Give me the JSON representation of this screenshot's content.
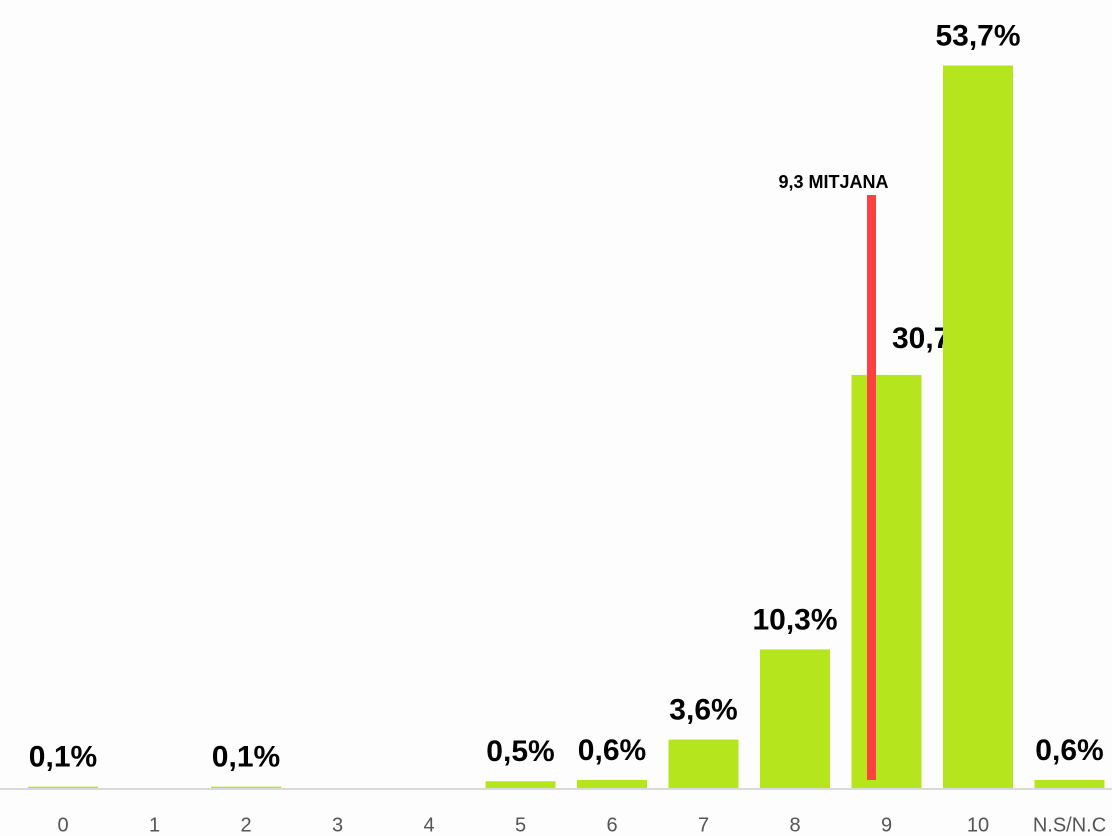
{
  "chart_data": {
    "type": "bar",
    "categories": [
      "0",
      "1",
      "2",
      "3",
      "4",
      "5",
      "6",
      "7",
      "8",
      "9",
      "10",
      "N.S/N.C"
    ],
    "values": [
      0.1,
      0,
      0.1,
      0,
      0,
      0.5,
      0.6,
      3.6,
      10.3,
      30.7,
      53.7,
      0.6
    ],
    "value_labels": [
      "0,1%",
      null,
      "0,1%",
      null,
      null,
      "0,5%",
      "0,6%",
      "3,6%",
      "10,3%",
      "30,7%",
      "53,7%",
      "0,6%"
    ],
    "color": "#b5e61d",
    "ylim": [
      0,
      55
    ],
    "mean": {
      "value": 9.3,
      "label": "9,3 MITJANA",
      "color": "#ff4040"
    }
  }
}
